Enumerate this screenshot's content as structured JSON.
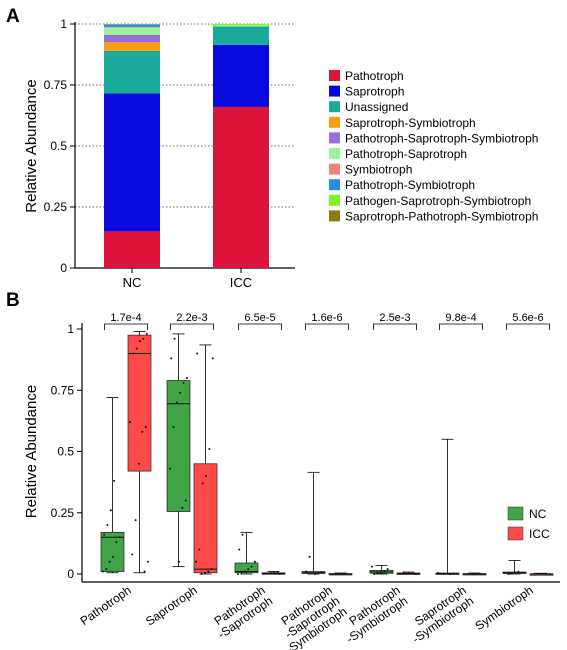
{
  "colors": {
    "Pathotroph": "#dc143c",
    "Saprotroph": "#0a0adf",
    "Unassigned": "#1aaa9c",
    "Saprotroph-Symbiotroph": "#f59f10",
    "Pathotroph-Saprotroph-Symbiotroph": "#9b6ddb",
    "Pathotroph-Saprotroph": "#9bf29b",
    "Symbiotroph": "#ee8080",
    "Pathotroph-Symbiotroph": "#2a8ae8",
    "Pathogen-Saprotroph-Symbiotroph": "#7cf22a",
    "Saprotroph-Pathotroph-Symbiotroph": "#8b7a10",
    "nc_box": "#3fa545",
    "icc_box": "#ff4a4a"
  },
  "chart_data": [
    {
      "panel": "A",
      "type": "bar",
      "stacked": true,
      "categories": [
        "NC",
        "ICC"
      ],
      "ylabel": "Relative Abundance",
      "ylim": [
        0,
        1
      ],
      "yticks": [
        "0",
        "0.25",
        "0.5",
        "0.75",
        "1"
      ],
      "yticks_values": [
        0,
        0.25,
        0.5,
        0.75,
        1
      ],
      "grid": "dotted horizontal",
      "legend": "right",
      "series": [
        {
          "name": "Pathotroph",
          "values": [
            0.15,
            0.66
          ]
        },
        {
          "name": "Saprotroph",
          "values": [
            0.565,
            0.255
          ]
        },
        {
          "name": "Unassigned",
          "values": [
            0.175,
            0.075
          ]
        },
        {
          "name": "Saprotroph-Symbiotroph",
          "values": [
            0.035,
            0.0
          ]
        },
        {
          "name": "Pathotroph-Saprotroph-Symbiotroph",
          "values": [
            0.03,
            0.0
          ]
        },
        {
          "name": "Pathotroph-Saprotroph",
          "values": [
            0.03,
            0.005
          ]
        },
        {
          "name": "Symbiotroph",
          "values": [
            0.003,
            0.0
          ]
        },
        {
          "name": "Pathotroph-Symbiotroph",
          "values": [
            0.01,
            0.0
          ]
        },
        {
          "name": "Pathogen-Saprotroph-Symbiotroph",
          "values": [
            0.002,
            0.005
          ]
        },
        {
          "name": "Saprotroph-Pathotroph-Symbiotroph",
          "values": [
            0.0,
            0.0
          ]
        }
      ]
    },
    {
      "panel": "B",
      "type": "box",
      "ylabel": "Relative Abundance",
      "ylim": [
        0,
        1
      ],
      "yticks": [
        "0",
        "0.25",
        "0.5",
        "0.75",
        "1"
      ],
      "yticks_values": [
        0,
        0.25,
        0.5,
        0.75,
        1
      ],
      "legend": "right",
      "groups": [
        "NC",
        "ICC"
      ],
      "categories": [
        {
          "label": [
            "Pathotroph"
          ],
          "pvalue": "1.7e-4",
          "NC": {
            "min": 0.005,
            "q1": 0.01,
            "median": 0.15,
            "q3": 0.17,
            "max": 0.72,
            "points": [
              0.01,
              0.02,
              0.05,
              0.07,
              0.13,
              0.15,
              0.16,
              0.2,
              0.26,
              0.38
            ]
          },
          "ICC": {
            "min": 0.005,
            "q1": 0.42,
            "median": 0.9,
            "q3": 0.975,
            "max": 0.99,
            "points": [
              0.01,
              0.05,
              0.08,
              0.22,
              0.45,
              0.58,
              0.6,
              0.62,
              0.9,
              0.92,
              0.95,
              0.96,
              0.98
            ]
          }
        },
        {
          "label": [
            "Saprotroph"
          ],
          "pvalue": "2.2e-3",
          "NC": {
            "min": 0.03,
            "q1": 0.255,
            "median": 0.695,
            "q3": 0.79,
            "max": 0.98,
            "points": [
              0.05,
              0.27,
              0.3,
              0.43,
              0.6,
              0.7,
              0.74,
              0.78,
              0.8,
              0.88,
              0.96
            ]
          },
          "ICC": {
            "min": 0.0,
            "q1": 0.005,
            "median": 0.02,
            "q3": 0.45,
            "max": 0.935,
            "points": [
              0.0,
              0.005,
              0.01,
              0.02,
              0.05,
              0.1,
              0.37,
              0.4,
              0.51,
              0.88,
              0.9
            ]
          }
        },
        {
          "label": [
            "Pathotroph",
            "-Saprotroph"
          ],
          "pvalue": "6.5e-5",
          "NC": {
            "min": 0.0,
            "q1": 0.005,
            "median": 0.01,
            "q3": 0.045,
            "max": 0.17,
            "points": [
              0.0,
              0.005,
              0.01,
              0.02,
              0.03,
              0.05,
              0.1,
              0.16
            ]
          },
          "ICC": {
            "min": 0.0,
            "q1": 0.0,
            "median": 0.002,
            "q3": 0.005,
            "max": 0.01,
            "points": [
              0.0,
              0.001,
              0.002,
              0.004,
              0.006,
              0.008
            ]
          }
        },
        {
          "label": [
            "Pathotroph",
            "-Saprotroph",
            "-Symbiotroph"
          ],
          "pvalue": "1.6e-6",
          "NC": {
            "min": 0.0,
            "q1": 0.002,
            "median": 0.005,
            "q3": 0.01,
            "max": 0.415,
            "points": [
              0.0,
              0.003,
              0.006,
              0.01,
              0.07
            ]
          },
          "ICC": {
            "min": 0.0,
            "q1": 0.0,
            "median": 0.0,
            "q3": 0.002,
            "max": 0.004,
            "points": [
              0.0,
              0.001,
              0.002
            ]
          }
        },
        {
          "label": [
            "Pathotroph",
            "-Symbiotroph"
          ],
          "pvalue": "2.5e-3",
          "NC": {
            "min": 0.0,
            "q1": 0.003,
            "median": 0.008,
            "q3": 0.015,
            "max": 0.035,
            "points": [
              0.0,
              0.004,
              0.008,
              0.012,
              0.02,
              0.03
            ]
          },
          "ICC": {
            "min": 0.0,
            "q1": 0.0,
            "median": 0.002,
            "q3": 0.004,
            "max": 0.008,
            "points": [
              0.0,
              0.002,
              0.004
            ]
          }
        },
        {
          "label": [
            "Saprotroph",
            "-Symbiotroph"
          ],
          "pvalue": "9.8e-4",
          "NC": {
            "min": 0.0,
            "q1": 0.0,
            "median": 0.002,
            "q3": 0.004,
            "max": 0.55,
            "points": [
              0.0,
              0.002,
              0.004
            ]
          },
          "ICC": {
            "min": 0.0,
            "q1": 0.0,
            "median": 0.0,
            "q3": 0.002,
            "max": 0.004,
            "points": [
              0.0,
              0.001
            ]
          }
        },
        {
          "label": [
            "Symbiotroph"
          ],
          "pvalue": "5.6e-6",
          "NC": {
            "min": 0.0,
            "q1": 0.002,
            "median": 0.005,
            "q3": 0.008,
            "max": 0.055,
            "points": [
              0.0,
              0.003,
              0.006,
              0.009
            ]
          },
          "ICC": {
            "min": 0.0,
            "q1": 0.0,
            "median": 0.0,
            "q3": 0.001,
            "max": 0.003,
            "points": [
              0.0,
              0.001
            ]
          }
        }
      ]
    }
  ],
  "panel_labels": {
    "a": "A",
    "b": "B"
  }
}
